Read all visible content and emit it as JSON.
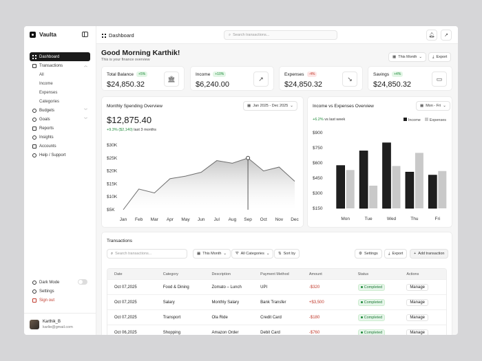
{
  "app": {
    "name": "Vaulta"
  },
  "sidebar": {
    "items": [
      {
        "label": "Dashboard"
      },
      {
        "label": "Transactions"
      },
      {
        "label": "All"
      },
      {
        "label": "Income"
      },
      {
        "label": "Expenses"
      },
      {
        "label": "Categories"
      },
      {
        "label": "Budgets"
      },
      {
        "label": "Goals"
      },
      {
        "label": "Reports"
      },
      {
        "label": "Insights"
      },
      {
        "label": "Accounts"
      },
      {
        "label": "Help / Support"
      }
    ],
    "bottom": {
      "dark_mode": "Dark Mode",
      "settings": "Settings",
      "sign_out": "Sign out"
    },
    "user": {
      "name": "Karthik_B",
      "email": "karlie@gmail.com"
    }
  },
  "header": {
    "breadcrumb": "Dashboard",
    "search_placeholder": "Search transactions..."
  },
  "greeting": {
    "title": "Good Morning Karthik!",
    "subtitle": "This is your finance overview",
    "period": "This Month",
    "export": "Export"
  },
  "kpis": [
    {
      "label": "Total Balance",
      "badge": "+5%",
      "trend": "up",
      "value": "$24,850.32",
      "icon": "bank-icon"
    },
    {
      "label": "Income",
      "badge": "+10%",
      "trend": "up",
      "value": "$6,240.00",
      "icon": "trend-up-icon"
    },
    {
      "label": "Expenses",
      "badge": "-4%",
      "trend": "down",
      "value": "$24,850.32",
      "icon": "trend-down-icon"
    },
    {
      "label": "Savings",
      "badge": "+4%",
      "trend": "up",
      "value": "$24,850.32",
      "icon": "wallet-icon"
    }
  ],
  "spending": {
    "title": "Monthly Spending Overview",
    "range": "Jan 2025 - Dec 2025",
    "value": "$12,875.40",
    "delta": "+9.3% ($2,140)",
    "delta_suffix": "last 3 months"
  },
  "income_exp": {
    "title": "Income vs Expenses Overview",
    "range": "Mon - Fri",
    "delta": "+6.2%",
    "delta_suffix": "vs last week",
    "legend_income": "Income",
    "legend_expenses": "Expenses"
  },
  "chart_data": [
    {
      "type": "area",
      "title": "Monthly Spending Overview",
      "categories": [
        "Jan",
        "Feb",
        "Mar",
        "Apr",
        "May",
        "Jun",
        "Jul",
        "Aug",
        "Sep",
        "Oct",
        "Nov",
        "Dec"
      ],
      "values": [
        5000,
        13000,
        11500,
        17000,
        18000,
        19500,
        24000,
        23000,
        25000,
        20000,
        21500,
        16000
      ],
      "y_ticks": [
        "$5K",
        "$10K",
        "$15K",
        "$20K",
        "$25K",
        "$30K"
      ],
      "ylim": [
        5000,
        30000
      ],
      "highlight": "Sep",
      "grid": false
    },
    {
      "type": "bar",
      "title": "Income vs Expenses Overview",
      "categories": [
        "Mon",
        "Tue",
        "Wed",
        "Thu",
        "Fri"
      ],
      "series": [
        {
          "name": "Income",
          "values": [
            575,
            720,
            800,
            510,
            480
          ]
        },
        {
          "name": "Expenses",
          "values": [
            530,
            375,
            570,
            700,
            520
          ]
        }
      ],
      "y_ticks": [
        "$150",
        "$300",
        "$450",
        "$600",
        "$750",
        "$900"
      ],
      "ylim": [
        150,
        900
      ],
      "legend": "top-right",
      "colors": [
        "#1f1f1f",
        "#c9c9c9"
      ]
    }
  ],
  "transactions": {
    "title": "Transactions",
    "search_placeholder": "Search transactions...",
    "period": "This Month",
    "categories": "All Categories",
    "sort": "Sort by",
    "settings": "Settings",
    "export": "Export",
    "add": "Add transaction",
    "columns": [
      "Date",
      "Category",
      "Description",
      "Payment Method",
      "Amount",
      "Status",
      "Actions"
    ],
    "rows": [
      {
        "date": "Oct 07,2025",
        "category": "Food & Dining",
        "description": "Zomato – Lunch",
        "method": "UPI",
        "amount": "-$320",
        "status": "Completed",
        "action": "Manage"
      },
      {
        "date": "Oct 07,2025",
        "category": "Salary",
        "description": "Monthly Salary",
        "method": "Bank Transfer",
        "amount": "+$3,500",
        "status": "Completed",
        "action": "Manage"
      },
      {
        "date": "Oct 07,2025",
        "category": "Transport",
        "description": "Ola Ride",
        "method": "Credit Card",
        "amount": "-$180",
        "status": "Completed",
        "action": "Manage"
      },
      {
        "date": "Oct 06,2025",
        "category": "Shopping",
        "description": "Amazon Order",
        "method": "Debit Card",
        "amount": "-$760",
        "status": "Completed",
        "action": "Manage"
      }
    ]
  }
}
